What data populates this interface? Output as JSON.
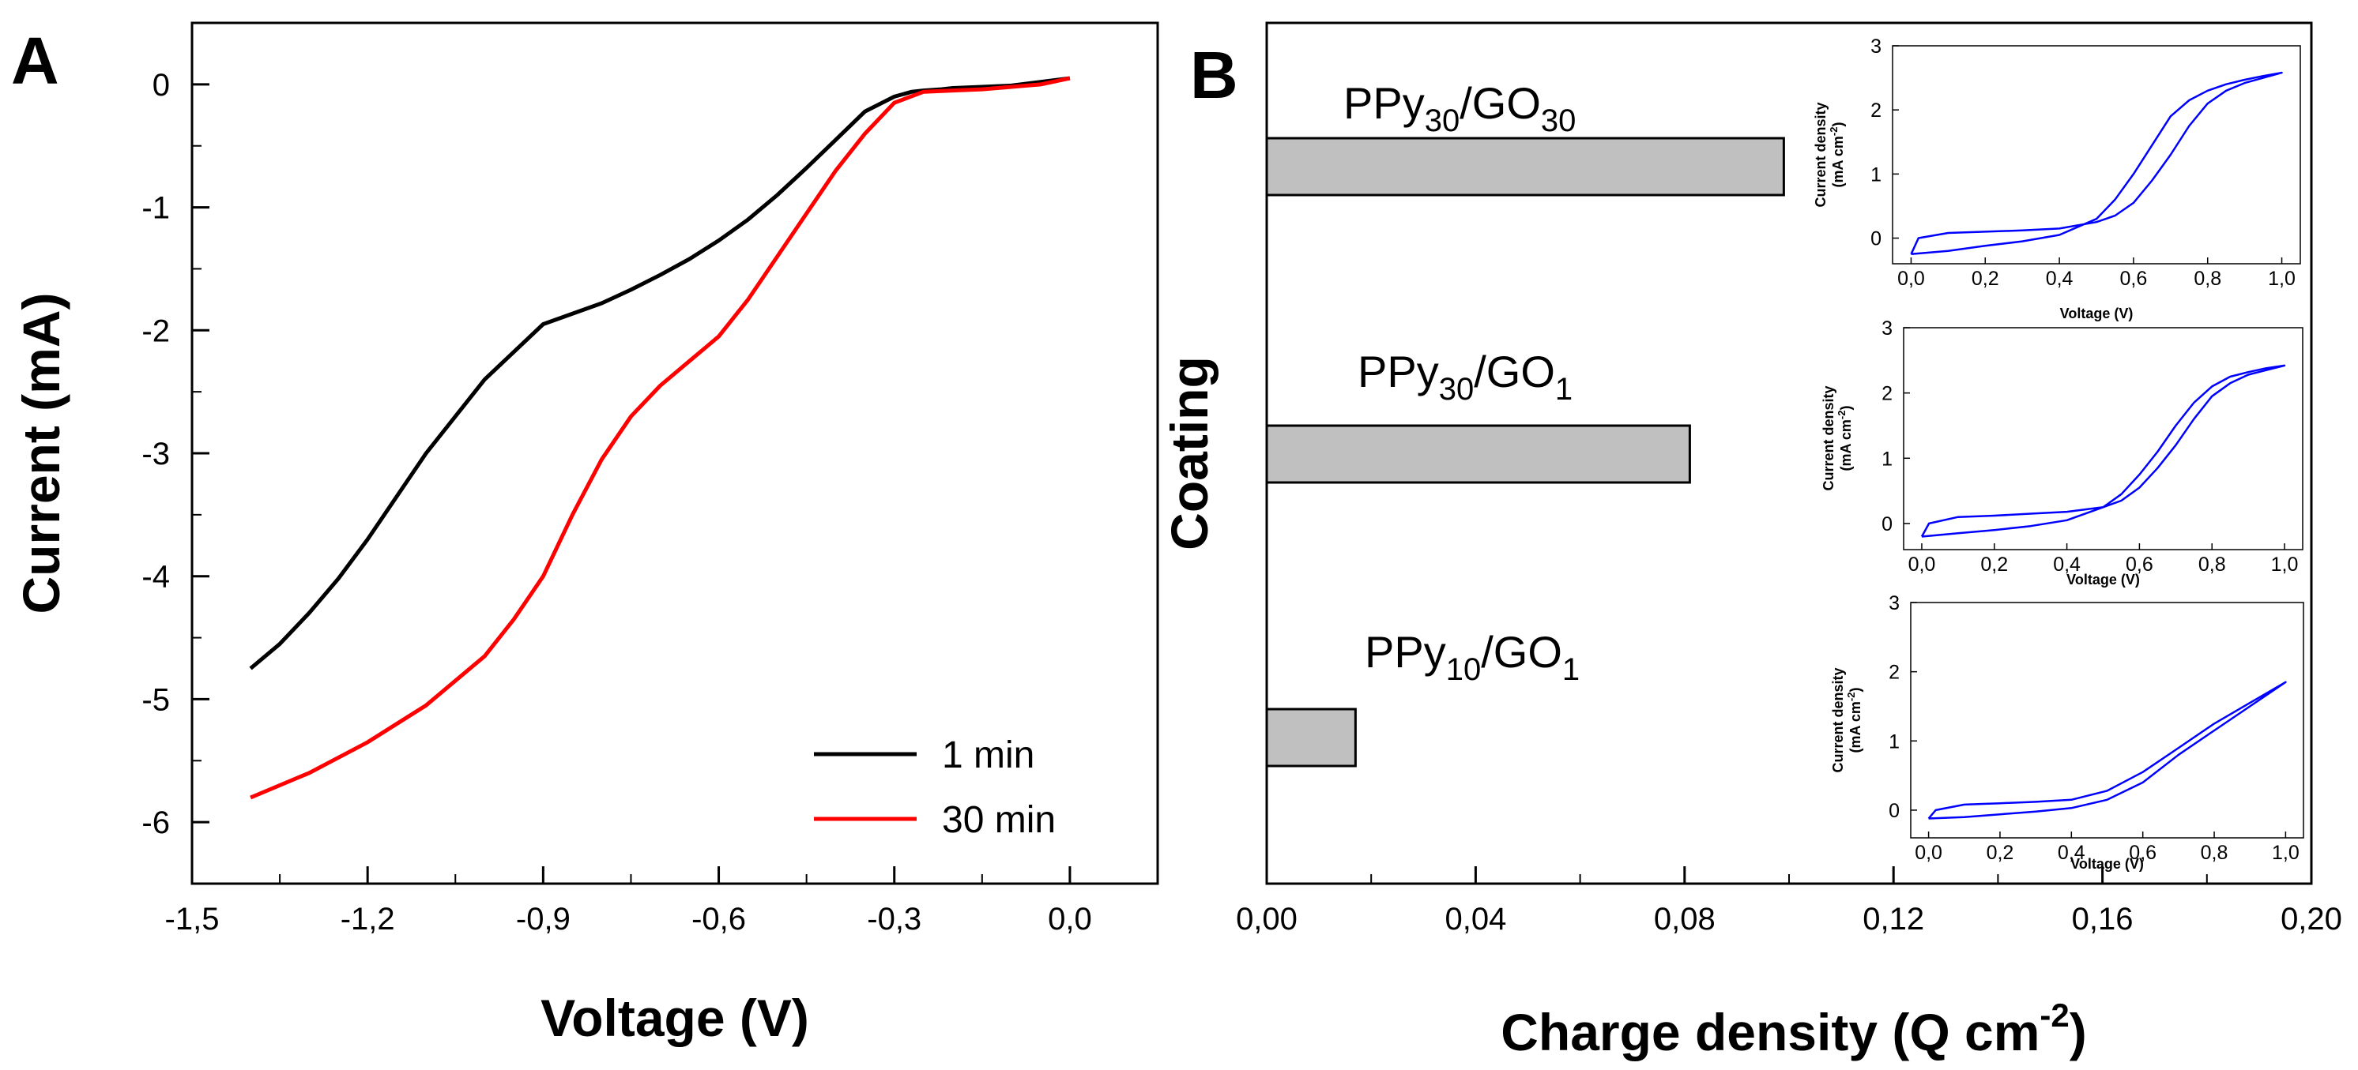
{
  "chart_data": [
    {
      "panel": "A",
      "type": "line",
      "xlabel": "Voltage (V)",
      "ylabel": "Current (mA)",
      "xlim": [
        -1.5,
        0.15
      ],
      "ylim": [
        -6.5,
        0.5
      ],
      "xticks": [
        -1.5,
        -1.2,
        -0.9,
        -0.6,
        -0.3,
        0.0
      ],
      "xtick_labels": [
        "-1,5",
        "-1,2",
        "-0,9",
        "-0,6",
        "-0,3",
        "0,0"
      ],
      "yticks": [
        0,
        -1,
        -2,
        -3,
        -4,
        -5,
        -6
      ],
      "ytick_labels": [
        "0",
        "-1",
        "-2",
        "-3",
        "-4",
        "-5",
        "-6"
      ],
      "legend_position": "bottom-right",
      "series": [
        {
          "name": "1 min",
          "color": "#000000",
          "x": [
            -1.4,
            -1.35,
            -1.3,
            -1.25,
            -1.2,
            -1.1,
            -1.0,
            -0.9,
            -0.8,
            -0.75,
            -0.7,
            -0.65,
            -0.6,
            -0.55,
            -0.5,
            -0.45,
            -0.4,
            -0.35,
            -0.3,
            -0.27,
            -0.25,
            -0.22,
            -0.2,
            -0.15,
            -0.1,
            -0.05,
            0.0
          ],
          "y": [
            -4.75,
            -4.55,
            -4.3,
            -4.02,
            -3.7,
            -3.0,
            -2.4,
            -1.95,
            -1.78,
            -1.67,
            -1.55,
            -1.42,
            -1.27,
            -1.1,
            -0.9,
            -0.68,
            -0.45,
            -0.22,
            -0.1,
            -0.06,
            -0.05,
            -0.04,
            -0.03,
            -0.02,
            -0.01,
            0.02,
            0.05
          ]
        },
        {
          "name": "30 min",
          "color": "#ff0000",
          "x": [
            -1.4,
            -1.3,
            -1.2,
            -1.1,
            -1.0,
            -0.95,
            -0.9,
            -0.85,
            -0.8,
            -0.75,
            -0.7,
            -0.65,
            -0.6,
            -0.55,
            -0.5,
            -0.45,
            -0.4,
            -0.35,
            -0.3,
            -0.25,
            -0.2,
            -0.15,
            -0.1,
            -0.05,
            0.0
          ],
          "y": [
            -5.8,
            -5.6,
            -5.35,
            -5.05,
            -4.65,
            -4.35,
            -4.0,
            -3.5,
            -3.05,
            -2.7,
            -2.45,
            -2.25,
            -2.05,
            -1.75,
            -1.4,
            -1.05,
            -0.7,
            -0.4,
            -0.15,
            -0.06,
            -0.05,
            -0.04,
            -0.02,
            0.0,
            0.05
          ]
        }
      ]
    },
    {
      "panel": "B",
      "type": "bar",
      "orientation": "horizontal",
      "xlabel": "Charge density (Q cm",
      "xlabel_superscript": "-2",
      "xlabel_suffix": ")",
      "ylabel": "Coating",
      "xlim": [
        0,
        0.2
      ],
      "xticks": [
        0.0,
        0.04,
        0.08,
        0.12,
        0.16,
        0.2
      ],
      "xtick_labels": [
        "0,00",
        "0,04",
        "0,08",
        "0,12",
        "0,16",
        "0,20"
      ],
      "bar_color": "#c0c0c0",
      "categories": [
        {
          "base1": "PPy",
          "sub1": "30",
          "base2": "/GO",
          "sub2": "30",
          "value": 0.099
        },
        {
          "base1": "PPy",
          "sub1": "30",
          "base2": "/GO",
          "sub2": "1",
          "value": 0.081
        },
        {
          "base1": "PPy",
          "sub1": "10",
          "base2": "/GO",
          "sub2": "1",
          "value": 0.017
        }
      ],
      "insets": [
        {
          "type": "line",
          "xlabel": "Voltage (V)",
          "ylabel_line1": "Current density",
          "ylabel_line2": "(mA cm",
          "ylabel_sup": "-2",
          "ylabel_suffix": ")",
          "color": "#0000ff",
          "xlim": [
            -0.05,
            1.05
          ],
          "ylim": [
            -0.4,
            3.0
          ],
          "xtick_labels": [
            "0,0",
            "0,2",
            "0,4",
            "0,6",
            "0,8",
            "1,0"
          ],
          "ytick_labels": [
            "0",
            "1",
            "2",
            "3"
          ],
          "x": [
            0.0,
            0.1,
            0.2,
            0.3,
            0.4,
            0.5,
            0.55,
            0.6,
            0.65,
            0.7,
            0.75,
            0.8,
            0.85,
            0.9,
            0.95,
            1.0,
            0.95,
            0.9,
            0.85,
            0.8,
            0.75,
            0.7,
            0.65,
            0.6,
            0.55,
            0.5,
            0.4,
            0.3,
            0.2,
            0.1,
            0.02,
            0.0
          ],
          "y": [
            -0.25,
            -0.2,
            -0.12,
            -0.05,
            0.05,
            0.3,
            0.6,
            1.0,
            1.45,
            1.9,
            2.15,
            2.3,
            2.4,
            2.47,
            2.53,
            2.58,
            2.5,
            2.42,
            2.3,
            2.1,
            1.75,
            1.3,
            0.9,
            0.55,
            0.35,
            0.25,
            0.15,
            0.12,
            0.1,
            0.08,
            0.0,
            -0.25
          ]
        },
        {
          "type": "line",
          "xlabel": "Voltage (V)",
          "ylabel_line1": "Current density",
          "ylabel_line2": "(mA cm",
          "ylabel_sup": "-2",
          "ylabel_suffix": ")",
          "color": "#0000ff",
          "xlim": [
            -0.05,
            1.05
          ],
          "ylim": [
            -0.4,
            3.0
          ],
          "xtick_labels": [
            "0,0",
            "0,2",
            "0,4",
            "0,6",
            "0,8",
            "1,0"
          ],
          "ytick_labels": [
            "0",
            "1",
            "2",
            "3"
          ],
          "x": [
            0.0,
            0.1,
            0.2,
            0.3,
            0.4,
            0.5,
            0.55,
            0.6,
            0.65,
            0.7,
            0.75,
            0.8,
            0.85,
            0.9,
            0.95,
            1.0,
            0.95,
            0.9,
            0.85,
            0.8,
            0.75,
            0.7,
            0.65,
            0.6,
            0.55,
            0.5,
            0.4,
            0.3,
            0.2,
            0.1,
            0.02,
            0.0
          ],
          "y": [
            -0.2,
            -0.15,
            -0.1,
            -0.04,
            0.05,
            0.25,
            0.45,
            0.75,
            1.1,
            1.5,
            1.85,
            2.1,
            2.25,
            2.32,
            2.38,
            2.42,
            2.35,
            2.28,
            2.15,
            1.95,
            1.6,
            1.2,
            0.85,
            0.55,
            0.35,
            0.25,
            0.18,
            0.15,
            0.12,
            0.1,
            0.0,
            -0.2
          ]
        },
        {
          "type": "line",
          "xlabel": "Voltage (V)",
          "ylabel_line1": "Current density",
          "ylabel_line2": "(mA cm",
          "ylabel_sup": "-2",
          "ylabel_suffix": ")",
          "color": "#0000ff",
          "xlim": [
            -0.05,
            1.05
          ],
          "ylim": [
            -0.4,
            3.0
          ],
          "xtick_labels": [
            "0,0",
            "0,2",
            "0,4",
            "0,6",
            "0,8",
            "1,0"
          ],
          "ytick_labels": [
            "0",
            "1",
            "2",
            "3"
          ],
          "x": [
            0.0,
            0.1,
            0.2,
            0.3,
            0.4,
            0.5,
            0.6,
            0.7,
            0.8,
            0.9,
            1.0,
            0.9,
            0.8,
            0.7,
            0.6,
            0.5,
            0.4,
            0.3,
            0.2,
            0.1,
            0.02,
            0.0
          ],
          "y": [
            -0.12,
            -0.1,
            -0.06,
            -0.02,
            0.03,
            0.15,
            0.4,
            0.8,
            1.15,
            1.5,
            1.85,
            1.55,
            1.25,
            0.9,
            0.55,
            0.28,
            0.15,
            0.12,
            0.1,
            0.08,
            0.0,
            -0.12
          ]
        }
      ]
    }
  ]
}
